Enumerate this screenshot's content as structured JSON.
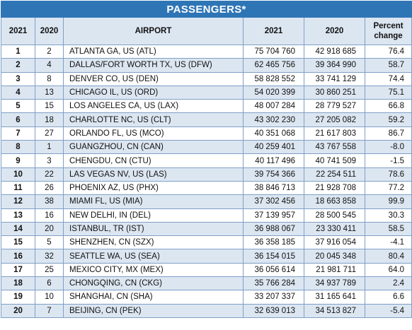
{
  "title": "PASSENGERS*",
  "headers": {
    "rank2021": "2021",
    "rank2020": "2020",
    "airport": "AIRPORT",
    "pax2021": "2021",
    "pax2020": "2020",
    "pct": "Percent change"
  },
  "rows": [
    {
      "r21": "1",
      "r20": "2",
      "airport": "ATLANTA GA, US (ATL)",
      "p21": "75 704 760",
      "p20": "42 918 685",
      "pct": "76.4"
    },
    {
      "r21": "2",
      "r20": "4",
      "airport": "DALLAS/FORT WORTH TX, US (DFW)",
      "p21": "62 465 756",
      "p20": "39 364 990",
      "pct": "58.7"
    },
    {
      "r21": "3",
      "r20": "8",
      "airport": "DENVER CO, US (DEN)",
      "p21": "58 828 552",
      "p20": "33 741 129",
      "pct": "74.4"
    },
    {
      "r21": "4",
      "r20": "13",
      "airport": "CHICAGO IL, US (ORD)",
      "p21": "54 020 399",
      "p20": "30 860 251",
      "pct": "75.1"
    },
    {
      "r21": "5",
      "r20": "15",
      "airport": "LOS ANGELES CA, US (LAX)",
      "p21": "48 007 284",
      "p20": "28 779 527",
      "pct": "66.8"
    },
    {
      "r21": "6",
      "r20": "18",
      "airport": "CHARLOTTE NC, US (CLT)",
      "p21": "43 302 230",
      "p20": "27 205 082",
      "pct": "59.2"
    },
    {
      "r21": "7",
      "r20": "27",
      "airport": "ORLANDO FL, US (MCO)",
      "p21": "40 351 068",
      "p20": "21 617 803",
      "pct": "86.7"
    },
    {
      "r21": "8",
      "r20": "1",
      "airport": "GUANGZHOU, CN (CAN)",
      "p21": "40 259 401",
      "p20": "43 767 558",
      "pct": "-8.0"
    },
    {
      "r21": "9",
      "r20": "3",
      "airport": "CHENGDU, CN (CTU)",
      "p21": "40 117 496",
      "p20": "40 741 509",
      "pct": "-1.5"
    },
    {
      "r21": "10",
      "r20": "22",
      "airport": "LAS VEGAS NV, US (LAS)",
      "p21": "39 754 366",
      "p20": "22 254 511",
      "pct": "78.6"
    },
    {
      "r21": "11",
      "r20": "26",
      "airport": "PHOENIX AZ, US (PHX)",
      "p21": "38 846 713",
      "p20": "21 928 708",
      "pct": "77.2"
    },
    {
      "r21": "12",
      "r20": "38",
      "airport": "MIAMI FL, US (MIA)",
      "p21": "37 302 456",
      "p20": "18 663 858",
      "pct": "99.9"
    },
    {
      "r21": "13",
      "r20": "16",
      "airport": "NEW DELHI, IN (DEL)",
      "p21": "37 139 957",
      "p20": "28 500 545",
      "pct": "30.3"
    },
    {
      "r21": "14",
      "r20": "20",
      "airport": "ISTANBUL, TR (IST)",
      "p21": "36 988 067",
      "p20": "23 330 411",
      "pct": "58.5"
    },
    {
      "r21": "15",
      "r20": "5",
      "airport": "SHENZHEN, CN (SZX)",
      "p21": "36 358 185",
      "p20": "37 916 054",
      "pct": "-4.1"
    },
    {
      "r21": "16",
      "r20": "32",
      "airport": "SEATTLE WA, US (SEA)",
      "p21": "36 154 015",
      "p20": "20 045 348",
      "pct": "80.4"
    },
    {
      "r21": "17",
      "r20": "25",
      "airport": "MEXICO CITY, MX (MEX)",
      "p21": "36 056 614",
      "p20": "21 981 711",
      "pct": "64.0"
    },
    {
      "r21": "18",
      "r20": "6",
      "airport": "CHONGQING, CN (CKG)",
      "p21": "35 766 284",
      "p20": "34 937 789",
      "pct": "2.4"
    },
    {
      "r21": "19",
      "r20": "10",
      "airport": "SHANGHAI, CN (SHA)",
      "p21": "33 207 337",
      "p20": "31 165 641",
      "pct": "6.6"
    },
    {
      "r21": "20",
      "r20": "7",
      "airport": "BEIJING, CN (PEK)",
      "p21": "32 639 013",
      "p20": "34 513 827",
      "pct": "-5.4"
    }
  ]
}
